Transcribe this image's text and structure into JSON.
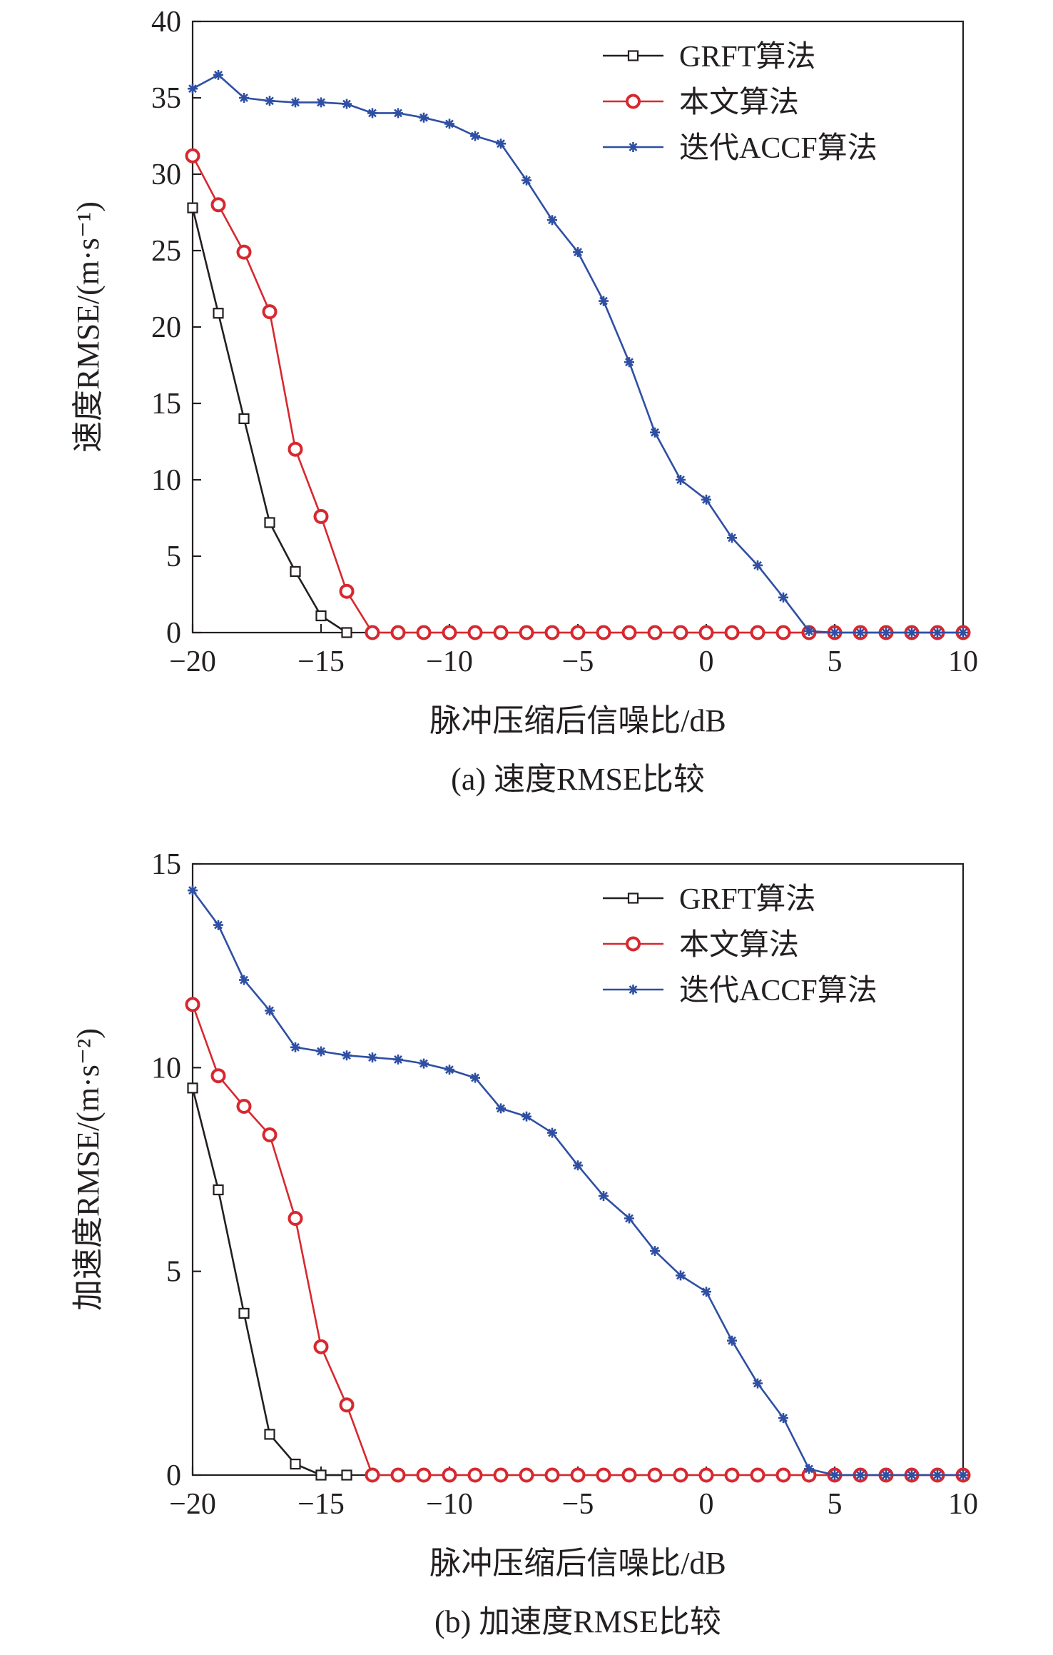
{
  "chart_data": [
    {
      "type": "line",
      "x": [
        -20,
        -19,
        -18,
        -17,
        -16,
        -15,
        -14,
        -13,
        -12,
        -11,
        -10,
        -9,
        -8,
        -7,
        -6,
        -5,
        -4,
        -3,
        -2,
        -1,
        0,
        1,
        2,
        3,
        4,
        5,
        6,
        7,
        8,
        9,
        10
      ],
      "xlabel": "脉冲压缩后信噪比/dB",
      "ylabel": "速度RMSE/(m·s⁻¹)",
      "caption": "(a) 速度RMSE比较",
      "xlim": [
        -20,
        10
      ],
      "ylim": [
        0,
        40
      ],
      "xticks": [
        -20,
        -15,
        -10,
        -5,
        0,
        5,
        10
      ],
      "yticks": [
        0,
        5,
        10,
        15,
        20,
        25,
        30,
        35,
        40
      ],
      "grid": false,
      "legend_position": "top-right",
      "series": [
        {
          "name": "GRFT算法",
          "color": "#231f20",
          "marker": "square",
          "x": [
            -20,
            -19,
            -18,
            -17,
            -16,
            -15,
            -14
          ],
          "values": [
            27.8,
            20.9,
            14.0,
            7.2,
            4.0,
            1.1,
            0.0
          ]
        },
        {
          "name": "本文算法",
          "color": "#d7282f",
          "marker": "circle",
          "x": [
            -20,
            -19,
            -18,
            -17,
            -16,
            -15,
            -14,
            -13,
            -12,
            -11,
            -10,
            -9,
            -8,
            -7,
            -6,
            -5,
            -4,
            -3,
            -2,
            -1,
            0,
            1,
            2,
            3,
            4,
            5,
            6,
            7,
            8,
            9,
            10
          ],
          "values": [
            31.2,
            28.0,
            24.9,
            21.0,
            12.0,
            7.6,
            2.7,
            0,
            0,
            0,
            0,
            0,
            0,
            0,
            0,
            0,
            0,
            0,
            0,
            0,
            0,
            0,
            0,
            0,
            0,
            0,
            0,
            0,
            0,
            0,
            0
          ]
        },
        {
          "name": "迭代ACCF算法",
          "color": "#2e4fa3",
          "marker": "asterisk",
          "x": [
            -20,
            -19,
            -18,
            -17,
            -16,
            -15,
            -14,
            -13,
            -12,
            -11,
            -10,
            -9,
            -8,
            -7,
            -6,
            -5,
            -4,
            -3,
            -2,
            -1,
            0,
            1,
            2,
            3,
            4,
            5,
            6,
            7,
            8,
            9,
            10
          ],
          "values": [
            35.6,
            36.5,
            35.0,
            34.8,
            34.7,
            34.7,
            34.6,
            34.0,
            34.0,
            33.7,
            33.3,
            32.5,
            32.0,
            29.6,
            27.0,
            24.9,
            21.7,
            17.7,
            13.1,
            10.0,
            8.7,
            6.2,
            4.4,
            2.3,
            0.1,
            0,
            0,
            0,
            0,
            0,
            0
          ]
        }
      ]
    },
    {
      "type": "line",
      "x": [
        -20,
        -19,
        -18,
        -17,
        -16,
        -15,
        -14,
        -13,
        -12,
        -11,
        -10,
        -9,
        -8,
        -7,
        -6,
        -5,
        -4,
        -3,
        -2,
        -1,
        0,
        1,
        2,
        3,
        4,
        5,
        6,
        7,
        8,
        9,
        10
      ],
      "xlabel": "脉冲压缩后信噪比/dB",
      "ylabel": "加速度RMSE/(m·s⁻²)",
      "caption": "(b) 加速度RMSE比较",
      "xlim": [
        -20,
        10
      ],
      "ylim": [
        0,
        15
      ],
      "xticks": [
        -20,
        -15,
        -10,
        -5,
        0,
        5,
        10
      ],
      "yticks": [
        0,
        5,
        10,
        15
      ],
      "grid": false,
      "legend_position": "top-right",
      "series": [
        {
          "name": "GRFT算法",
          "color": "#231f20",
          "marker": "square",
          "x": [
            -20,
            -19,
            -18,
            -17,
            -16,
            -15,
            -14
          ],
          "values": [
            9.5,
            7.0,
            3.97,
            1.0,
            0.27,
            0.0,
            0.0
          ]
        },
        {
          "name": "本文算法",
          "color": "#d7282f",
          "marker": "circle",
          "x": [
            -20,
            -19,
            -18,
            -17,
            -16,
            -15,
            -14,
            -13,
            -12,
            -11,
            -10,
            -9,
            -8,
            -7,
            -6,
            -5,
            -4,
            -3,
            -2,
            -1,
            0,
            1,
            2,
            3,
            4,
            5,
            6,
            7,
            8,
            9,
            10
          ],
          "values": [
            11.55,
            9.8,
            9.05,
            8.35,
            6.3,
            3.15,
            1.72,
            0,
            0,
            0,
            0,
            0,
            0,
            0,
            0,
            0,
            0,
            0,
            0,
            0,
            0,
            0,
            0,
            0,
            0,
            0,
            0,
            0,
            0,
            0,
            0
          ]
        },
        {
          "name": "迭代ACCF算法",
          "color": "#2e4fa3",
          "marker": "asterisk",
          "x": [
            -20,
            -19,
            -18,
            -17,
            -16,
            -15,
            -14,
            -13,
            -12,
            -11,
            -10,
            -9,
            -8,
            -7,
            -6,
            -5,
            -4,
            -3,
            -2,
            -1,
            0,
            1,
            2,
            3,
            4,
            5,
            6,
            7,
            8,
            9,
            10
          ],
          "values": [
            14.35,
            13.5,
            12.15,
            11.4,
            10.5,
            10.4,
            10.3,
            10.25,
            10.2,
            10.1,
            9.95,
            9.75,
            9.0,
            8.8,
            8.4,
            7.6,
            6.85,
            6.3,
            5.5,
            4.9,
            4.5,
            3.3,
            2.25,
            1.4,
            0.15,
            0,
            0,
            0,
            0,
            0,
            0
          ]
        }
      ]
    }
  ]
}
